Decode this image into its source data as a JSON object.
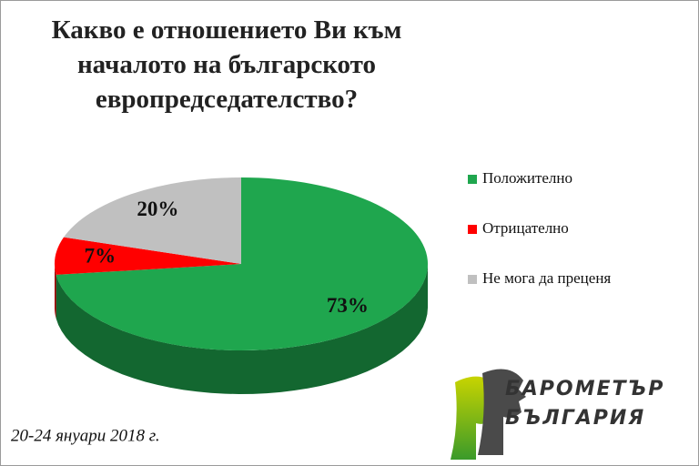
{
  "chart_data": {
    "type": "pie3d",
    "title": "Какво е отношението Ви към началото на българското европредседателство?",
    "categories": [
      "Положително",
      "Отрицателно",
      "Не мога да преценя"
    ],
    "values": [
      73,
      7,
      20
    ],
    "value_labels": [
      "73%",
      "7%",
      "20%"
    ],
    "colors": [
      "#1fa64e",
      "#ff0000",
      "#c0c0c0"
    ],
    "legend": "right",
    "footnote": "20-24 януари 2018 г.",
    "logo": [
      "БАРОМЕТЪР",
      "БЪЛГАРИЯ"
    ]
  }
}
